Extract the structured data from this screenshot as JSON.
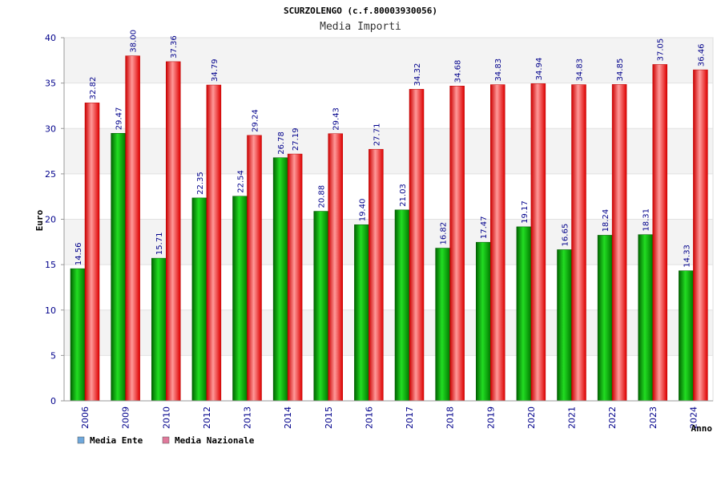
{
  "title": "SCURZOLENGO (c.f.80003930056)",
  "subtitle": "Media Importi",
  "chart_data": {
    "type": "bar",
    "ylabel": "Euro",
    "xlabel": "Anno",
    "ylim": [
      0,
      40
    ],
    "yticks": [
      0,
      5,
      10,
      15,
      20,
      25,
      30,
      35,
      40
    ],
    "grid": true,
    "legend_position": "bottom-left",
    "categories": [
      "2006",
      "2009",
      "2010",
      "2012",
      "2013",
      "2014",
      "2015",
      "2016",
      "2017",
      "2018",
      "2019",
      "2020",
      "2021",
      "2022",
      "2023",
      "2024"
    ],
    "series": [
      {
        "name": "Media Ente",
        "color": "#00aa00",
        "legend_color": "#6fa8dc",
        "values": [
          14.56,
          29.47,
          15.71,
          22.35,
          22.54,
          26.78,
          20.88,
          19.4,
          21.03,
          16.82,
          17.47,
          19.17,
          16.65,
          18.24,
          18.31,
          14.33
        ],
        "labels": [
          "14.56",
          "29.47",
          "15.71",
          "22.35",
          "22.54",
          "26.78",
          "20.88",
          "19.40",
          "21.03",
          "16.82",
          "17.47",
          "19.17",
          "16.65",
          "18.24",
          "18.31",
          "14.33"
        ]
      },
      {
        "name": "Media Nazionale",
        "color": "#ee1111",
        "legend_color": "#e0799b",
        "values": [
          32.82,
          38.0,
          37.36,
          34.79,
          29.24,
          27.19,
          29.43,
          27.71,
          34.32,
          34.68,
          34.83,
          34.94,
          34.83,
          34.85,
          37.05,
          36.46
        ],
        "labels": [
          "32.82",
          "38.00",
          "37.36",
          "34.79",
          "29.24",
          "27.19",
          "29.43",
          "27.71",
          "34.32",
          "34.68",
          "34.83",
          "34.94",
          "34.83",
          "34.85",
          "37.05",
          "36.46"
        ]
      }
    ]
  }
}
